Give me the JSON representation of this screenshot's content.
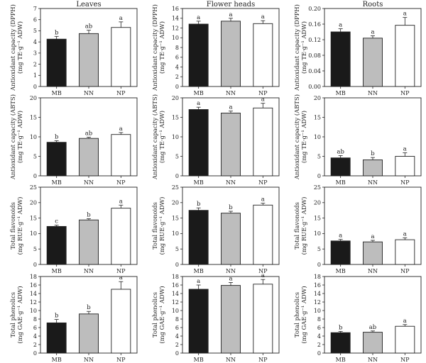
{
  "column_titles": [
    "Leaves",
    "Flower heads",
    "Roots"
  ],
  "row_ylabels": [
    [
      "Antioxidant capacity (DPPH)",
      "(mg TE·g⁻¹ ADW)"
    ],
    [
      "Antioxidant capacity (ABTS)",
      "(mg TE·g⁻¹ ADW)"
    ],
    [
      "Total flavonoids",
      "(mg RUE·g⁻¹ ADW)"
    ],
    [
      "Total phenolics",
      "(mg GAE·g⁻¹ ADW)"
    ]
  ],
  "colors": {
    "MB": "#1a1a1a",
    "NN": "#bdbdbd",
    "NP": "#ffffff"
  },
  "chart_data": [
    {
      "type": "bar",
      "row": 0,
      "col": 0,
      "categories": [
        "MB",
        "NN",
        "NP"
      ],
      "values": [
        4.25,
        4.75,
        5.3
      ],
      "errors": [
        0.25,
        0.3,
        0.5
      ],
      "letters": [
        "b",
        "ab",
        "a"
      ],
      "ylim": [
        0,
        7
      ],
      "yticks": [
        0,
        1,
        2,
        3,
        4,
        5,
        6,
        7
      ],
      "ytick_labels": [
        "0",
        "1",
        "2",
        "3",
        "4",
        "5",
        "6",
        "7"
      ]
    },
    {
      "type": "bar",
      "row": 0,
      "col": 1,
      "categories": [
        "MB",
        "NN",
        "NP"
      ],
      "values": [
        12.8,
        13.4,
        12.9
      ],
      "errors": [
        0.6,
        0.6,
        0.6
      ],
      "letters": [
        "a",
        "a",
        "a"
      ],
      "ylim": [
        0,
        16
      ],
      "yticks": [
        0,
        2,
        4,
        6,
        8,
        10,
        12,
        14,
        16
      ],
      "ytick_labels": [
        "0",
        "2",
        "4",
        "6",
        "8",
        "10",
        "12",
        "14",
        "16"
      ]
    },
    {
      "type": "bar",
      "row": 0,
      "col": 2,
      "categories": [
        "MB",
        "NN",
        "NP"
      ],
      "values": [
        0.14,
        0.124,
        0.157
      ],
      "errors": [
        0.008,
        0.006,
        0.02
      ],
      "letters": [
        "a",
        "a",
        "a"
      ],
      "ylim": [
        0,
        0.2
      ],
      "yticks": [
        0,
        0.04,
        0.08,
        0.12,
        0.16,
        0.2
      ],
      "ytick_labels": [
        "0.00",
        "0.04",
        "0.08",
        "0.12",
        "0.16",
        "0.20"
      ]
    },
    {
      "type": "bar",
      "row": 1,
      "col": 0,
      "categories": [
        "MB",
        "NN",
        "NP"
      ],
      "values": [
        8.6,
        9.6,
        10.6
      ],
      "errors": [
        0.4,
        0.3,
        0.5
      ],
      "letters": [
        "b",
        "ab",
        "a"
      ],
      "ylim": [
        0,
        20
      ],
      "yticks": [
        0,
        5,
        10,
        15,
        20
      ],
      "ytick_labels": [
        "0",
        "5",
        "10",
        "15",
        "20"
      ]
    },
    {
      "type": "bar",
      "row": 1,
      "col": 1,
      "categories": [
        "MB",
        "NN",
        "NP"
      ],
      "values": [
        17.0,
        16.1,
        17.4
      ],
      "errors": [
        0.6,
        0.5,
        1.2
      ],
      "letters": [
        "a",
        "a",
        "a"
      ],
      "ylim": [
        0,
        20
      ],
      "yticks": [
        0,
        5,
        10,
        15,
        20
      ],
      "ytick_labels": [
        "0",
        "5",
        "10",
        "15",
        "20"
      ]
    },
    {
      "type": "bar",
      "row": 1,
      "col": 2,
      "categories": [
        "MB",
        "NN",
        "NP"
      ],
      "values": [
        4.6,
        4.1,
        5.0
      ],
      "errors": [
        0.6,
        0.6,
        0.9
      ],
      "letters": [
        "ab",
        "b",
        "a"
      ],
      "ylim": [
        0,
        20
      ],
      "yticks": [
        0,
        5,
        10,
        15,
        20
      ],
      "ytick_labels": [
        "0",
        "5",
        "10",
        "15",
        "20"
      ]
    },
    {
      "type": "bar",
      "row": 2,
      "col": 0,
      "categories": [
        "MB",
        "NN",
        "NP"
      ],
      "values": [
        12.3,
        14.4,
        18.2
      ],
      "errors": [
        0.4,
        0.4,
        1.0
      ],
      "letters": [
        "c",
        "b",
        "a"
      ],
      "ylim": [
        0,
        25
      ],
      "yticks": [
        0,
        5,
        10,
        15,
        20,
        25
      ],
      "ytick_labels": [
        "0",
        "5",
        "10",
        "15",
        "20",
        "25"
      ]
    },
    {
      "type": "bar",
      "row": 2,
      "col": 1,
      "categories": [
        "MB",
        "NN",
        "NP"
      ],
      "values": [
        17.5,
        16.6,
        19.2
      ],
      "errors": [
        0.8,
        0.6,
        0.6
      ],
      "letters": [
        "b",
        "b",
        "a"
      ],
      "ylim": [
        0,
        25
      ],
      "yticks": [
        0,
        5,
        10,
        15,
        20,
        25
      ],
      "ytick_labels": [
        "0",
        "5",
        "10",
        "15",
        "20",
        "25"
      ]
    },
    {
      "type": "bar",
      "row": 2,
      "col": 2,
      "categories": [
        "MB",
        "NN",
        "NP"
      ],
      "values": [
        7.6,
        7.3,
        8.0
      ],
      "errors": [
        0.5,
        0.5,
        0.6
      ],
      "letters": [
        "a",
        "a",
        "a"
      ],
      "ylim": [
        0,
        25
      ],
      "yticks": [
        0,
        5,
        10,
        15,
        20,
        25
      ],
      "ytick_labels": [
        "0",
        "5",
        "10",
        "15",
        "20",
        "25"
      ]
    },
    {
      "type": "bar",
      "row": 3,
      "col": 0,
      "categories": [
        "MB",
        "NN",
        "NP"
      ],
      "values": [
        7.1,
        9.2,
        15.0
      ],
      "errors": [
        0.8,
        0.6,
        1.8
      ],
      "letters": [
        "b",
        "b",
        "a"
      ],
      "ylim": [
        0,
        18
      ],
      "yticks": [
        0,
        2,
        4,
        6,
        8,
        10,
        12,
        14,
        16,
        18
      ],
      "ytick_labels": [
        "0",
        "2",
        "4",
        "6",
        "8",
        "10",
        "12",
        "14",
        "16",
        "18"
      ]
    },
    {
      "type": "bar",
      "row": 3,
      "col": 1,
      "categories": [
        "MB",
        "NN",
        "NP"
      ],
      "values": [
        15.0,
        15.9,
        16.2
      ],
      "errors": [
        1.0,
        0.7,
        1.1
      ],
      "letters": [
        "a",
        "a",
        "a"
      ],
      "ylim": [
        0,
        18
      ],
      "yticks": [
        0,
        2,
        4,
        6,
        8,
        10,
        12,
        14,
        16,
        18
      ],
      "ytick_labels": [
        "0",
        "2",
        "4",
        "6",
        "8",
        "10",
        "12",
        "14",
        "16",
        "18"
      ]
    },
    {
      "type": "bar",
      "row": 3,
      "col": 2,
      "categories": [
        "MB",
        "NN",
        "NP"
      ],
      "values": [
        4.8,
        4.9,
        6.3
      ],
      "errors": [
        0.3,
        0.3,
        0.4
      ],
      "letters": [
        "b",
        "ab",
        "a"
      ],
      "ylim": [
        0,
        18
      ],
      "yticks": [
        0,
        2,
        4,
        6,
        8,
        10,
        12,
        14,
        16,
        18
      ],
      "ytick_labels": [
        "0",
        "2",
        "4",
        "6",
        "8",
        "10",
        "12",
        "14",
        "16",
        "18"
      ]
    }
  ]
}
